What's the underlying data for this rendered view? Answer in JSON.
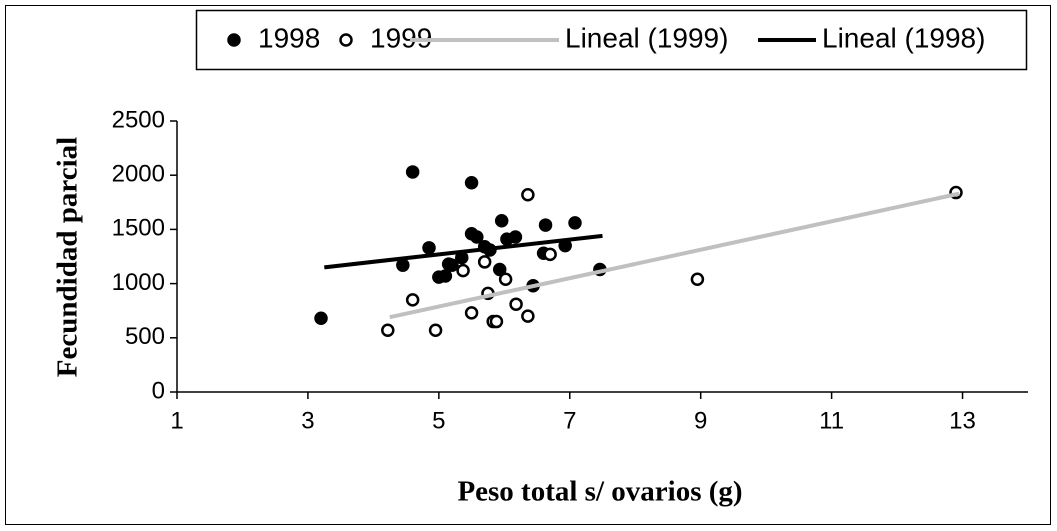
{
  "chart_data": {
    "type": "scatter",
    "xlabel": "Peso total s/ ovarios (g)",
    "ylabel": "Fecundidad parcial",
    "xlim": [
      1,
      14
    ],
    "xticks": [
      1,
      3,
      5,
      7,
      9,
      11,
      13
    ],
    "ylim": [
      0,
      2500
    ],
    "yticks": [
      0,
      500,
      1000,
      1500,
      2000,
      2500
    ],
    "grid": false,
    "legend": "top",
    "series": [
      {
        "name": "1998",
        "mode": "markers",
        "color": "#000000",
        "marker_fill": "#000000",
        "x": [
          3.2,
          4.6,
          4.45,
          4.85,
          5.0,
          5.1,
          5.15,
          5.2,
          5.35,
          5.5,
          5.58,
          5.5,
          5.7,
          5.78,
          5.93,
          5.96,
          6.04,
          6.17,
          6.44,
          6.6,
          6.63,
          6.93,
          7.08,
          7.46
        ],
        "values": [
          680,
          2030,
          1170,
          1330,
          1060,
          1070,
          1180,
          1170,
          1240,
          1460,
          1430,
          1930,
          1340,
          1310,
          1130,
          1580,
          1410,
          1430,
          980,
          1280,
          1540,
          1350,
          1560,
          1130
        ]
      },
      {
        "name": "1999",
        "mode": "markers",
        "color": "#000000",
        "marker_fill": "#ffffff",
        "x": [
          4.22,
          4.6,
          4.95,
          5.37,
          5.5,
          5.75,
          5.7,
          5.83,
          5.88,
          6.02,
          6.18,
          6.36,
          6.36,
          6.7,
          8.95,
          12.9
        ],
        "values": [
          570,
          850,
          570,
          1120,
          730,
          910,
          1200,
          650,
          650,
          1040,
          810,
          1820,
          700,
          1270,
          1040,
          1840
        ]
      },
      {
        "name": "Lineal (1999)",
        "mode": "line",
        "color": "#c0c0c0",
        "x": [
          4.25,
          12.95
        ],
        "values": [
          690,
          1830
        ]
      },
      {
        "name": "Lineal (1998)",
        "mode": "line",
        "color": "#000000",
        "x": [
          3.25,
          7.5
        ],
        "values": [
          1150,
          1440
        ]
      }
    ]
  }
}
